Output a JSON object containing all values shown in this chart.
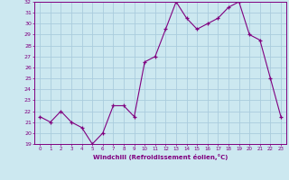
{
  "x": [
    0,
    1,
    2,
    3,
    4,
    5,
    6,
    7,
    8,
    9,
    10,
    11,
    12,
    13,
    14,
    15,
    16,
    17,
    18,
    19,
    20,
    21,
    22,
    23
  ],
  "y": [
    21.5,
    21.0,
    22.0,
    21.0,
    20.5,
    19.0,
    20.0,
    22.5,
    22.5,
    21.5,
    26.5,
    27.0,
    29.5,
    32.0,
    30.5,
    29.5,
    30.0,
    30.5,
    31.5,
    32.0,
    29.0,
    28.5,
    25.0,
    21.5
  ],
  "xlabel": "Windchill (Refroidissement éolien,°C)",
  "ylim": [
    19,
    32
  ],
  "xlim": [
    -0.5,
    23.5
  ],
  "yticks": [
    19,
    20,
    21,
    22,
    23,
    24,
    25,
    26,
    27,
    28,
    29,
    30,
    31,
    32
  ],
  "xticks": [
    0,
    1,
    2,
    3,
    4,
    5,
    6,
    7,
    8,
    9,
    10,
    11,
    12,
    13,
    14,
    15,
    16,
    17,
    18,
    19,
    20,
    21,
    22,
    23
  ],
  "line_color": "#800080",
  "marker": "+",
  "bg_color": "#cce8f0",
  "grid_color": "#aaccdd",
  "tick_label_color": "#800080",
  "xlabel_color": "#800080"
}
